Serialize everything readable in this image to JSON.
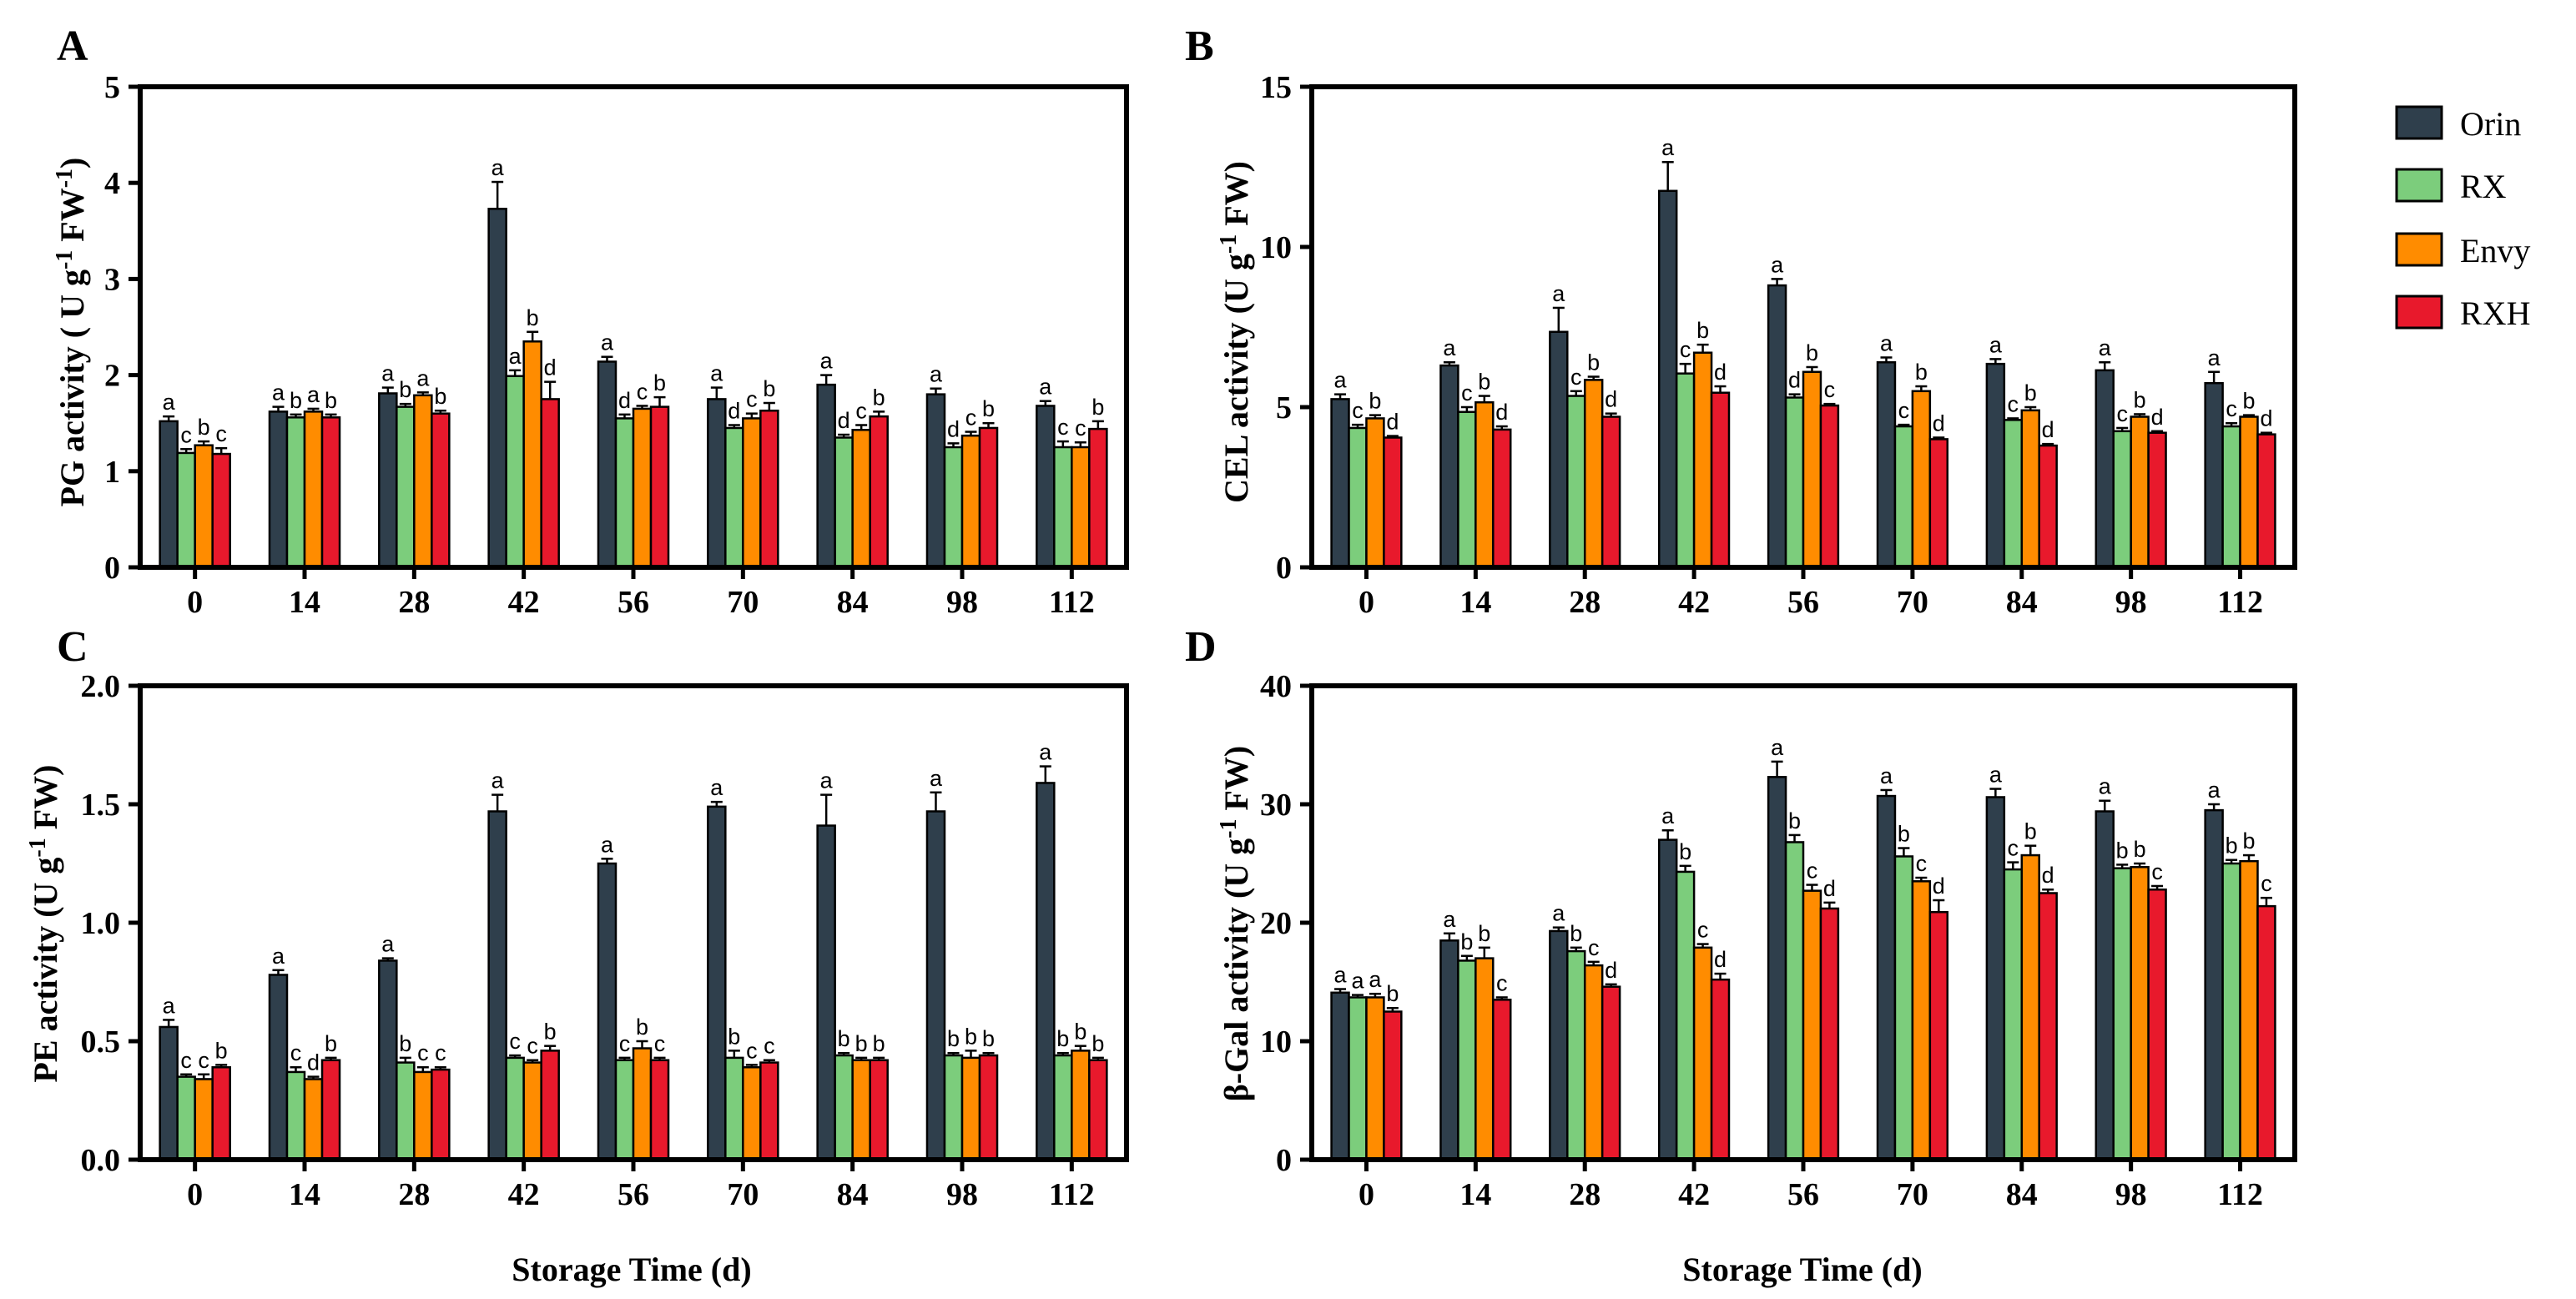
{
  "figure": {
    "legend": [
      {
        "label": "Orin",
        "color": "#2f3f4c"
      },
      {
        "label": "RX",
        "color": "#7ccd7c"
      },
      {
        "label": "Envy",
        "color": "#ff8c00"
      },
      {
        "label": "RXH",
        "color": "#e8192c"
      }
    ]
  },
  "chart_data": [
    {
      "type": "bar",
      "panel": "A",
      "ylabel_main": "PG activity ( U g",
      "ylabel_sup1": "-1",
      "ylabel_mid": " FW",
      "ylabel_sup2": "-1",
      "ylabel_end": ")",
      "xlabel": "",
      "ylim": [
        0,
        5
      ],
      "yticks": [
        0,
        1,
        2,
        3,
        4,
        5
      ],
      "ytick_labels": [
        "0",
        "1",
        "2",
        "3",
        "4",
        "5"
      ],
      "categories": [
        "0",
        "14",
        "28",
        "42",
        "56",
        "70",
        "84",
        "98",
        "112"
      ],
      "series": [
        {
          "name": "Orin",
          "values": [
            1.52,
            1.62,
            1.81,
            3.73,
            2.14,
            1.75,
            1.9,
            1.8,
            1.68
          ],
          "errors": [
            0.05,
            0.05,
            0.06,
            0.28,
            0.05,
            0.12,
            0.1,
            0.06,
            0.05
          ],
          "letters": [
            "a",
            "a",
            "a",
            "a",
            "a",
            "a",
            "a",
            "a",
            "a"
          ]
        },
        {
          "name": "RX",
          "values": [
            1.19,
            1.56,
            1.67,
            1.99,
            1.55,
            1.45,
            1.35,
            1.25,
            1.25
          ],
          "errors": [
            0.04,
            0.03,
            0.03,
            0.06,
            0.04,
            0.03,
            0.03,
            0.04,
            0.06
          ],
          "letters": [
            "c",
            "b",
            "b",
            "a",
            "d",
            "d",
            "d",
            "d",
            "c"
          ]
        },
        {
          "name": "Envy",
          "values": [
            1.27,
            1.62,
            1.79,
            2.35,
            1.65,
            1.55,
            1.43,
            1.37,
            1.25
          ],
          "errors": [
            0.04,
            0.03,
            0.03,
            0.1,
            0.03,
            0.05,
            0.05,
            0.04,
            0.05
          ],
          "letters": [
            "b",
            "a",
            "a",
            "b",
            "c",
            "c",
            "c",
            "c",
            "c"
          ]
        },
        {
          "name": "RXH",
          "values": [
            1.18,
            1.56,
            1.6,
            1.75,
            1.67,
            1.63,
            1.57,
            1.45,
            1.44
          ],
          "errors": [
            0.06,
            0.03,
            0.03,
            0.18,
            0.1,
            0.08,
            0.05,
            0.05,
            0.08
          ],
          "letters": [
            "c",
            "b",
            "b",
            "d",
            "b",
            "b",
            "b",
            "b",
            "b"
          ]
        }
      ]
    },
    {
      "type": "bar",
      "panel": "B",
      "ylabel_main": "CEL activity (U g",
      "ylabel_sup1": "-1",
      "ylabel_mid": " FW)",
      "xlabel": "",
      "ylim": [
        0,
        15
      ],
      "yticks": [
        0,
        5,
        10,
        15
      ],
      "ytick_labels": [
        "0",
        "5",
        "10",
        "15"
      ],
      "categories": [
        "0",
        "14",
        "28",
        "42",
        "56",
        "70",
        "84",
        "98",
        "112"
      ],
      "series": [
        {
          "name": "Orin",
          "values": [
            5.25,
            6.3,
            7.35,
            11.75,
            8.8,
            6.4,
            6.35,
            6.15,
            5.75
          ],
          "errors": [
            0.15,
            0.1,
            0.75,
            0.9,
            0.2,
            0.15,
            0.15,
            0.25,
            0.35
          ],
          "letters": [
            "a",
            "a",
            "a",
            "a",
            "a",
            "a",
            "a",
            "a",
            "a"
          ]
        },
        {
          "name": "RX",
          "values": [
            4.35,
            4.85,
            5.35,
            6.05,
            5.3,
            4.4,
            4.6,
            4.25,
            4.4
          ],
          "errors": [
            0.1,
            0.15,
            0.15,
            0.3,
            0.1,
            0.05,
            0.05,
            0.1,
            0.1
          ],
          "letters": [
            "c",
            "c",
            "c",
            "c",
            "d",
            "c",
            "c",
            "c",
            "c"
          ]
        },
        {
          "name": "Envy",
          "values": [
            4.65,
            5.15,
            5.85,
            6.7,
            6.1,
            5.5,
            4.9,
            4.7,
            4.7
          ],
          "errors": [
            0.1,
            0.2,
            0.1,
            0.25,
            0.15,
            0.15,
            0.1,
            0.08,
            0.05
          ],
          "letters": [
            "b",
            "b",
            "b",
            "b",
            "b",
            "b",
            "b",
            "b",
            "b"
          ]
        },
        {
          "name": "RXH",
          "values": [
            4.05,
            4.3,
            4.7,
            5.45,
            5.05,
            4.0,
            3.8,
            4.2,
            4.15
          ],
          "errors": [
            0.05,
            0.1,
            0.1,
            0.2,
            0.05,
            0.05,
            0.05,
            0.05,
            0.05
          ],
          "letters": [
            "d",
            "d",
            "d",
            "d",
            "c",
            "d",
            "d",
            "d",
            "d"
          ]
        }
      ]
    },
    {
      "type": "bar",
      "panel": "C",
      "ylabel_main": "PE activity (U g",
      "ylabel_sup1": "-1",
      "ylabel_mid": " FW)",
      "xlabel": "Storage Time (d)",
      "ylim": [
        0,
        2.0
      ],
      "yticks": [
        0,
        0.5,
        1.0,
        1.5,
        2.0
      ],
      "ytick_labels": [
        "0.0",
        "0.5",
        "1.0",
        "1.5",
        "2.0"
      ],
      "categories": [
        "0",
        "14",
        "28",
        "42",
        "56",
        "70",
        "84",
        "98",
        "112"
      ],
      "series": [
        {
          "name": "Orin",
          "values": [
            0.56,
            0.78,
            0.84,
            1.47,
            1.25,
            1.49,
            1.41,
            1.47,
            1.59
          ],
          "errors": [
            0.03,
            0.02,
            0.01,
            0.07,
            0.02,
            0.02,
            0.13,
            0.08,
            0.07
          ],
          "letters": [
            "a",
            "a",
            "a",
            "a",
            "a",
            "a",
            "a",
            "a",
            "a"
          ]
        },
        {
          "name": "RX",
          "values": [
            0.35,
            0.37,
            0.41,
            0.43,
            0.42,
            0.43,
            0.44,
            0.44,
            0.44
          ],
          "errors": [
            0.01,
            0.02,
            0.02,
            0.01,
            0.01,
            0.03,
            0.01,
            0.01,
            0.01
          ],
          "letters": [
            "c",
            "c",
            "b",
            "c",
            "c",
            "b",
            "b",
            "b",
            "b"
          ]
        },
        {
          "name": "Envy",
          "values": [
            0.34,
            0.34,
            0.37,
            0.41,
            0.47,
            0.39,
            0.42,
            0.43,
            0.46
          ],
          "errors": [
            0.02,
            0.01,
            0.02,
            0.01,
            0.03,
            0.01,
            0.01,
            0.03,
            0.02
          ],
          "letters": [
            "c",
            "d",
            "c",
            "c",
            "b",
            "c",
            "b",
            "b",
            "b"
          ]
        },
        {
          "name": "RXH",
          "values": [
            0.39,
            0.42,
            0.38,
            0.46,
            0.42,
            0.41,
            0.42,
            0.44,
            0.42
          ],
          "errors": [
            0.01,
            0.01,
            0.01,
            0.02,
            0.01,
            0.01,
            0.01,
            0.01,
            0.01
          ],
          "letters": [
            "b",
            "b",
            "c",
            "b",
            "c",
            "c",
            "b",
            "b",
            "b"
          ]
        }
      ]
    },
    {
      "type": "bar",
      "panel": "D",
      "ylabel_main": "β-Gal activity (U g",
      "ylabel_sup1": "-1",
      "ylabel_mid": " FW)",
      "xlabel": "Storage Time (d)",
      "ylim": [
        0,
        40
      ],
      "yticks": [
        0,
        10,
        20,
        30,
        40
      ],
      "ytick_labels": [
        "0",
        "10",
        "20",
        "30",
        "40"
      ],
      "categories": [
        "0",
        "14",
        "28",
        "42",
        "56",
        "70",
        "84",
        "98",
        "112"
      ],
      "series": [
        {
          "name": "Orin",
          "values": [
            14.1,
            18.5,
            19.3,
            27.0,
            32.3,
            30.7,
            30.6,
            29.4,
            29.5
          ],
          "errors": [
            0.3,
            0.6,
            0.3,
            0.8,
            1.3,
            0.5,
            0.7,
            0.9,
            0.5
          ],
          "letters": [
            "a",
            "a",
            "a",
            "a",
            "a",
            "a",
            "a",
            "a",
            "a"
          ]
        },
        {
          "name": "RX",
          "values": [
            13.7,
            16.8,
            17.6,
            24.3,
            26.8,
            25.6,
            24.5,
            24.6,
            25.0
          ],
          "errors": [
            0.2,
            0.4,
            0.3,
            0.5,
            0.6,
            0.7,
            0.6,
            0.3,
            0.3
          ],
          "letters": [
            "a",
            "b",
            "b",
            "b",
            "b",
            "b",
            "c",
            "b",
            "b"
          ]
        },
        {
          "name": "Envy",
          "values": [
            13.7,
            17.0,
            16.4,
            17.9,
            22.7,
            23.5,
            25.7,
            24.7,
            25.2
          ],
          "errors": [
            0.3,
            0.9,
            0.3,
            0.3,
            0.5,
            0.3,
            0.8,
            0.3,
            0.5
          ],
          "letters": [
            "a",
            "b",
            "c",
            "c",
            "c",
            "c",
            "b",
            "b",
            "b"
          ]
        },
        {
          "name": "RXH",
          "values": [
            12.5,
            13.5,
            14.6,
            15.2,
            21.2,
            20.9,
            22.5,
            22.8,
            21.4
          ],
          "errors": [
            0.3,
            0.2,
            0.2,
            0.5,
            0.5,
            1.0,
            0.3,
            0.3,
            0.7
          ],
          "letters": [
            "b",
            "c",
            "d",
            "d",
            "d",
            "d",
            "d",
            "c",
            "c"
          ]
        }
      ]
    }
  ]
}
